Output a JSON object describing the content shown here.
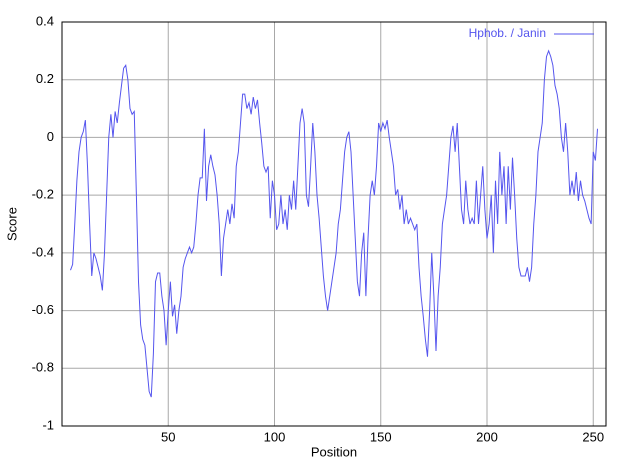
{
  "chart_data": {
    "type": "line",
    "xlabel": "Position",
    "ylabel": "Score",
    "x": [
      4,
      5,
      6,
      7,
      8,
      9,
      10,
      11,
      12,
      13,
      14,
      15,
      16,
      17,
      18,
      19,
      20,
      21,
      22,
      23,
      24,
      25,
      26,
      27,
      28,
      29,
      30,
      31,
      32,
      33,
      34,
      35,
      36,
      37,
      38,
      39,
      40,
      41,
      42,
      43,
      44,
      45,
      46,
      47,
      48,
      49,
      50,
      51,
      52,
      53,
      54,
      55,
      56,
      57,
      58,
      59,
      60,
      61,
      62,
      63,
      64,
      65,
      66,
      67,
      68,
      69,
      70,
      71,
      72,
      73,
      74,
      75,
      76,
      77,
      78,
      79,
      80,
      81,
      82,
      83,
      84,
      85,
      86,
      87,
      88,
      89,
      90,
      91,
      92,
      93,
      94,
      95,
      96,
      97,
      98,
      99,
      100,
      101,
      102,
      103,
      104,
      105,
      106,
      107,
      108,
      109,
      110,
      111,
      112,
      113,
      114,
      115,
      116,
      117,
      118,
      119,
      120,
      121,
      122,
      123,
      124,
      125,
      126,
      127,
      128,
      129,
      130,
      131,
      132,
      133,
      134,
      135,
      136,
      137,
      138,
      139,
      140,
      141,
      142,
      143,
      144,
      145,
      146,
      147,
      148,
      149,
      150,
      151,
      152,
      153,
      154,
      155,
      156,
      157,
      158,
      159,
      160,
      161,
      162,
      163,
      164,
      165,
      166,
      167,
      168,
      169,
      170,
      171,
      172,
      173,
      174,
      175,
      176,
      177,
      178,
      179,
      180,
      181,
      182,
      183,
      184,
      185,
      186,
      187,
      188,
      189,
      190,
      191,
      192,
      193,
      194,
      195,
      196,
      197,
      198,
      199,
      200,
      201,
      202,
      203,
      204,
      205,
      206,
      207,
      208,
      209,
      210,
      211,
      212,
      213,
      214,
      215,
      216,
      217,
      218,
      219,
      220,
      221,
      222,
      223,
      224,
      225,
      226,
      227,
      228,
      229,
      230,
      231,
      232,
      233,
      234,
      235,
      236,
      237,
      238,
      239,
      240,
      241,
      242,
      243,
      244,
      245,
      246,
      247,
      248,
      249,
      250,
      251,
      252
    ],
    "series": [
      {
        "name": "Hphob. / Janin",
        "color": "#5555ee",
        "values": [
          -0.46,
          -0.44,
          -0.3,
          -0.15,
          -0.05,
          0,
          0.02,
          0.06,
          -0.1,
          -0.3,
          -0.48,
          -0.4,
          -0.42,
          -0.45,
          -0.48,
          -0.53,
          -0.4,
          -0.2,
          0,
          0.08,
          0,
          0.09,
          0.05,
          0.12,
          0.18,
          0.24,
          0.25,
          0.2,
          0.1,
          0.08,
          0.09,
          -0.2,
          -0.5,
          -0.65,
          -0.7,
          -0.72,
          -0.8,
          -0.88,
          -0.9,
          -0.75,
          -0.5,
          -0.47,
          -0.47,
          -0.55,
          -0.6,
          -0.72,
          -0.6,
          -0.5,
          -0.62,
          -0.58,
          -0.68,
          -0.6,
          -0.55,
          -0.45,
          -0.42,
          -0.4,
          -0.38,
          -0.4,
          -0.38,
          -0.3,
          -0.2,
          -0.14,
          -0.14,
          0.03,
          -0.22,
          -0.1,
          -0.06,
          -0.1,
          -0.13,
          -0.2,
          -0.3,
          -0.48,
          -0.35,
          -0.3,
          -0.25,
          -0.3,
          -0.23,
          -0.28,
          -0.1,
          -0.05,
          0.05,
          0.15,
          0.15,
          0.1,
          0.12,
          0.08,
          0.14,
          0.1,
          0.13,
          0.05,
          -0.02,
          -0.1,
          -0.12,
          -0.1,
          -0.28,
          -0.15,
          -0.2,
          -0.32,
          -0.3,
          -0.2,
          -0.3,
          -0.25,
          -0.32,
          -0.2,
          -0.25,
          -0.15,
          -0.25,
          -0.1,
          0.05,
          0.1,
          0.05,
          -0.2,
          -0.24,
          -0.1,
          0.05,
          -0.05,
          -0.2,
          -0.28,
          -0.38,
          -0.48,
          -0.55,
          -0.6,
          -0.55,
          -0.5,
          -0.45,
          -0.4,
          -0.3,
          -0.25,
          -0.15,
          -0.05,
          0,
          0.02,
          -0.05,
          -0.2,
          -0.35,
          -0.5,
          -0.55,
          -0.4,
          -0.33,
          -0.55,
          -0.35,
          -0.2,
          -0.15,
          -0.2,
          -0.1,
          0.05,
          0.02,
          0.05,
          0.03,
          0.06,
          0,
          -0.05,
          -0.1,
          -0.2,
          -0.18,
          -0.25,
          -0.2,
          -0.3,
          -0.25,
          -0.3,
          -0.28,
          -0.3,
          -0.32,
          -0.3,
          -0.45,
          -0.55,
          -0.62,
          -0.7,
          -0.76,
          -0.6,
          -0.4,
          -0.55,
          -0.74,
          -0.55,
          -0.45,
          -0.3,
          -0.25,
          -0.2,
          -0.1,
          0,
          0.04,
          -0.05,
          0.05,
          -0.1,
          -0.25,
          -0.3,
          -0.15,
          -0.25,
          -0.3,
          -0.28,
          -0.3,
          -0.15,
          -0.3,
          -0.2,
          -0.1,
          -0.25,
          -0.35,
          -0.3,
          -0.2,
          -0.4,
          -0.15,
          -0.3,
          -0.05,
          -0.2,
          -0.1,
          -0.3,
          -0.1,
          -0.25,
          -0.07,
          -0.2,
          -0.35,
          -0.45,
          -0.48,
          -0.48,
          -0.48,
          -0.45,
          -0.5,
          -0.45,
          -0.3,
          -0.2,
          -0.05,
          0,
          0.05,
          0.2,
          0.28,
          0.3,
          0.28,
          0.25,
          0.18,
          0.15,
          0.1,
          0,
          -0.05,
          0.05,
          -0.05,
          -0.2,
          -0.15,
          -0.2,
          -0.12,
          -0.22,
          -0.15,
          -0.2,
          -0.22,
          -0.25,
          -0.28,
          -0.3,
          -0.05,
          -0.08,
          0.03
        ]
      }
    ],
    "xlim": [
      0,
      256
    ],
    "xticks": [
      50,
      100,
      150,
      200,
      250
    ],
    "ylim": [
      -1,
      0.4
    ],
    "yticks": [
      -1,
      -0.8,
      -0.6,
      -0.4,
      -0.2,
      0,
      0.2,
      0.4
    ],
    "grid": true,
    "legend": "top-right"
  }
}
